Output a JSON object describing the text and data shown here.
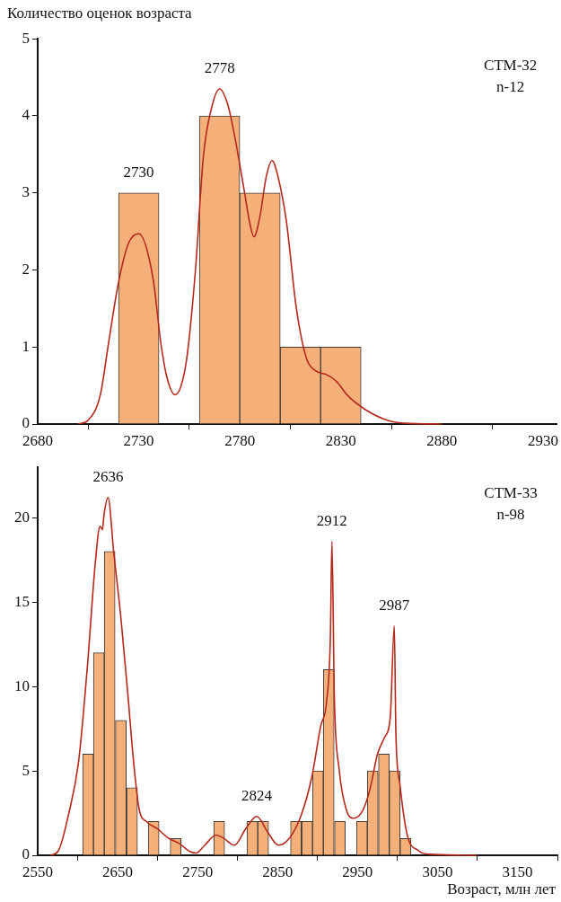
{
  "chart_data": [
    {
      "type": "histogram",
      "ylabel": "Количество оценок возраста",
      "color": "#f5b07a",
      "bins": [
        2720,
        2740,
        2760,
        2780,
        2800,
        2820,
        2840
      ],
      "values": [
        3,
        0,
        4,
        3,
        1,
        1
      ],
      "series": [
        {
          "type": "line",
          "color": "#b5281c",
          "x": [
            2700,
            2705,
            2711,
            2715,
            2720,
            2725,
            2730,
            2737,
            2741,
            2744,
            2748,
            2751,
            2754,
            2758,
            2762,
            2766,
            2770,
            2774,
            2777,
            2782,
            2785,
            2787,
            2790,
            2793,
            2796,
            2799,
            2803,
            2808,
            2813,
            2817,
            2823,
            2828,
            2833,
            2842,
            2853,
            2862,
            2880
          ],
          "values": [
            0,
            0.05,
            0.38,
            1.04,
            1.84,
            2.35,
            2.47,
            1.9,
            1.04,
            0.6,
            0.38,
            0.5,
            0.9,
            1.98,
            3.48,
            4.1,
            4.35,
            4.15,
            3.8,
            3.06,
            2.6,
            2.43,
            2.7,
            3.2,
            3.42,
            3.2,
            2.64,
            1.5,
            0.85,
            0.7,
            0.64,
            0.55,
            0.38,
            0.19,
            0.05,
            0.01,
            0
          ]
        }
      ],
      "xlim": [
        2680,
        2937
      ],
      "xticks": [
        2680,
        2730,
        2780,
        2830,
        2880,
        2930
      ],
      "ylim": [
        0,
        5
      ],
      "yticks": [
        0,
        1,
        2,
        3,
        4,
        5
      ],
      "annotations": [
        {
          "text": "2730",
          "x": 2730,
          "y": 3
        },
        {
          "text": "2778",
          "x": 2770,
          "y": 4.35
        },
        "СТМ-32",
        "n-12"
      ]
    },
    {
      "type": "histogram",
      "xlabel": "Возраст, млн лет",
      "color": "#f5b07a",
      "bins": [
        2606,
        2620,
        2633,
        2647,
        2661,
        2675,
        2688,
        2702,
        2716,
        2729,
        2743,
        2757,
        2770,
        2784,
        2798,
        2812,
        2825,
        2839,
        2853,
        2866,
        2880,
        2894,
        2907,
        2921,
        2935,
        2949,
        2962,
        2976,
        2990,
        3003,
        3017
      ],
      "values": [
        6,
        12,
        18,
        8,
        4,
        0,
        2,
        0,
        1,
        0,
        0,
        0,
        2,
        0,
        0,
        2,
        2,
        0,
        0,
        2,
        2,
        5,
        11,
        2,
        0,
        2,
        5,
        6,
        5,
        1
      ],
      "series": [
        {
          "type": "line",
          "color": "#b5281c",
          "x": [
            2566,
            2576,
            2589,
            2601,
            2612,
            2622,
            2628,
            2631,
            2633,
            2638,
            2645,
            2654,
            2663,
            2670,
            2677,
            2686,
            2700,
            2713,
            2727,
            2741,
            2748,
            2759,
            2773,
            2782,
            2796,
            2810,
            2824,
            2838,
            2851,
            2865,
            2879,
            2893,
            2904,
            2911,
            2916,
            2918,
            2921,
            2927,
            2936,
            2945,
            2957,
            2966,
            2975,
            2984,
            2991,
            2996,
            2998,
            3003,
            3012,
            3026,
            3040,
            3099
          ],
          "values": [
            0,
            0.28,
            2.5,
            5.5,
            11.1,
            17.3,
            19.5,
            19.3,
            20.2,
            21.2,
            18,
            14.1,
            9.4,
            5.5,
            2.7,
            2,
            1.56,
            1.03,
            0.7,
            0.21,
            0.13,
            0.6,
            1.2,
            1.03,
            0.6,
            1.56,
            2.3,
            1.35,
            0.6,
            1.03,
            2.3,
            4.67,
            7.67,
            9,
            12.8,
            18.6,
            9.4,
            5.1,
            2.7,
            2.2,
            2.7,
            4,
            6,
            7,
            8.2,
            13.6,
            7.2,
            4.2,
            1.24,
            0.28,
            0.06,
            0
          ]
        }
      ],
      "xlim": [
        2550,
        3200
      ],
      "xticks": [
        2550,
        2650,
        2750,
        2850,
        2950,
        3050,
        3150
      ],
      "ylim": [
        0,
        23
      ],
      "yticks": [
        0,
        5,
        10,
        15,
        20
      ],
      "annotations": [
        {
          "text": "2636",
          "x": 2638,
          "y": 21.2
        },
        {
          "text": "2824",
          "x": 2824,
          "y": 2.3
        },
        {
          "text": "2912",
          "x": 2918,
          "y": 18.6
        },
        {
          "text": "2987",
          "x": 2996,
          "y": 13.6
        },
        "СТМ-33",
        "n-98"
      ]
    }
  ]
}
